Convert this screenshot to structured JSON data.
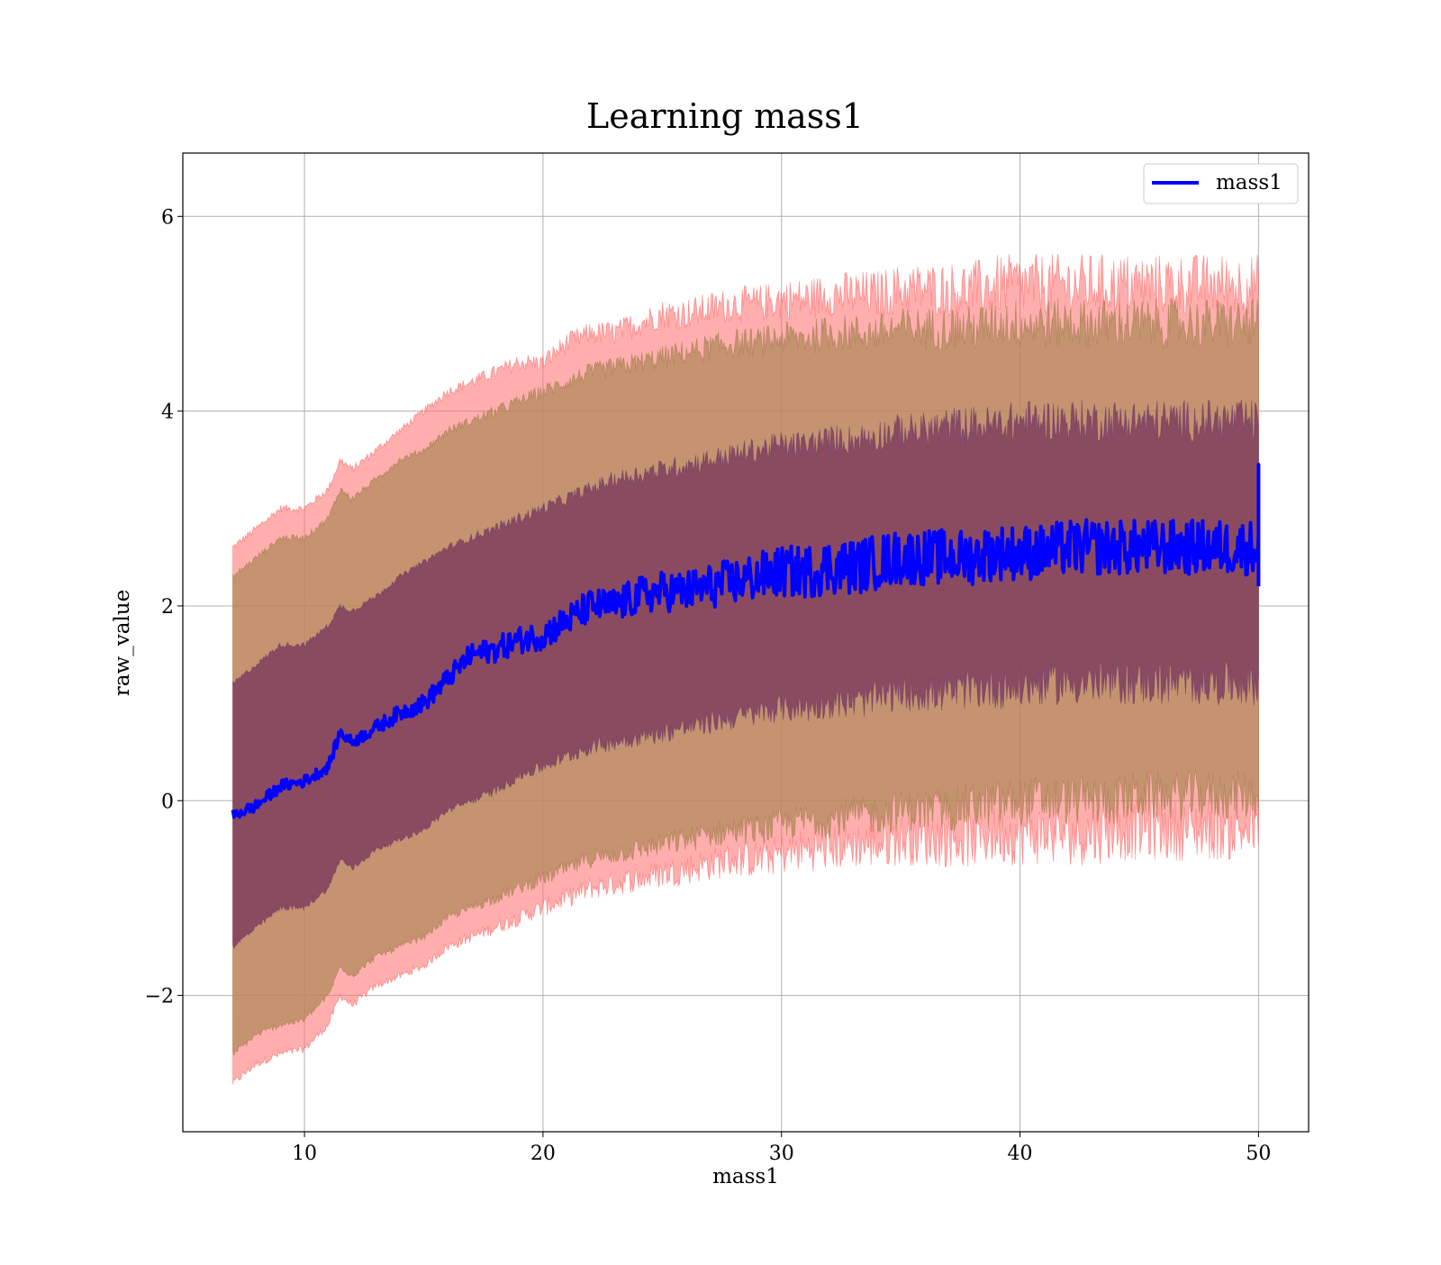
{
  "chart_data": {
    "type": "line",
    "title": "Learning mass1",
    "xlabel": "mass1",
    "ylabel": "raw_value",
    "xlim": [
      4.9,
      52.1
    ],
    "ylim": [
      -3.4,
      6.65
    ],
    "x_ticks": [
      10,
      20,
      30,
      40,
      50
    ],
    "x_tick_labels": [
      "10",
      "20",
      "30",
      "40",
      "50"
    ],
    "y_ticks": [
      -2,
      0,
      2,
      4,
      6
    ],
    "y_tick_labels": [
      "−2",
      "0",
      "2",
      "4",
      "6"
    ],
    "grid": true,
    "legend": {
      "position": "top-right",
      "entries": [
        "mass1"
      ]
    },
    "colors": {
      "line": "#0000ff",
      "outer_band": "#ff6b6b",
      "middle_band": "#b28a5a",
      "inner_band": "#7a3a5e"
    },
    "series": [
      {
        "name": "mass1",
        "x": [
          7,
          8,
          9,
          10,
          11,
          11.5,
          12,
          13,
          14,
          15,
          16,
          17,
          18,
          19,
          20,
          21,
          22,
          23,
          24,
          25,
          26,
          27,
          28,
          29,
          30,
          31,
          32,
          33,
          34,
          35,
          36,
          37,
          38,
          39,
          40,
          41,
          42,
          43,
          44,
          45,
          46,
          47,
          48,
          49,
          50
        ],
        "y": [
          -0.15,
          -0.05,
          0.15,
          0.2,
          0.35,
          0.7,
          0.6,
          0.75,
          0.9,
          1.0,
          1.25,
          1.5,
          1.55,
          1.65,
          1.7,
          1.85,
          2.0,
          2.0,
          2.1,
          2.15,
          2.15,
          2.2,
          2.25,
          2.3,
          2.35,
          2.35,
          2.4,
          2.4,
          2.45,
          2.5,
          2.5,
          2.5,
          2.5,
          2.55,
          2.55,
          2.55,
          2.6,
          2.6,
          2.6,
          2.6,
          2.6,
          2.6,
          2.6,
          2.6,
          2.6
        ],
        "band_outer": {
          "upper": [
            2.6,
            2.8,
            3.0,
            3.0,
            3.2,
            3.5,
            3.4,
            3.6,
            3.8,
            4.0,
            4.2,
            4.3,
            4.4,
            4.5,
            4.5,
            4.7,
            4.8,
            4.8,
            4.9,
            5.0,
            5.0,
            5.05,
            5.1,
            5.1,
            5.15,
            5.15,
            5.2,
            5.2,
            5.2,
            5.25,
            5.25,
            5.25,
            5.25,
            5.3,
            5.3,
            5.3,
            5.3,
            5.3,
            5.3,
            5.3,
            5.3,
            5.3,
            5.3,
            5.3,
            5.3
          ],
          "lower": [
            -2.9,
            -2.7,
            -2.6,
            -2.55,
            -2.3,
            -2.0,
            -2.1,
            -1.9,
            -1.8,
            -1.7,
            -1.5,
            -1.4,
            -1.3,
            -1.2,
            -1.1,
            -1.0,
            -0.9,
            -0.85,
            -0.8,
            -0.75,
            -0.7,
            -0.65,
            -0.6,
            -0.6,
            -0.55,
            -0.5,
            -0.5,
            -0.45,
            -0.45,
            -0.4,
            -0.4,
            -0.4,
            -0.4,
            -0.35,
            -0.35,
            -0.35,
            -0.35,
            -0.35,
            -0.3,
            -0.3,
            -0.3,
            -0.3,
            -0.3,
            -0.3,
            -0.3
          ]
        },
        "band_middle": {
          "upper": [
            2.3,
            2.5,
            2.7,
            2.7,
            2.9,
            3.2,
            3.1,
            3.3,
            3.5,
            3.6,
            3.8,
            3.9,
            4.0,
            4.1,
            4.2,
            4.3,
            4.4,
            4.45,
            4.5,
            4.55,
            4.6,
            4.65,
            4.7,
            4.7,
            4.75,
            4.75,
            4.8,
            4.8,
            4.8,
            4.85,
            4.85,
            4.85,
            4.85,
            4.9,
            4.9,
            4.9,
            4.9,
            4.9,
            4.9,
            4.9,
            4.9,
            4.9,
            4.9,
            4.9,
            4.9
          ],
          "lower": [
            -2.6,
            -2.4,
            -2.3,
            -2.25,
            -2.0,
            -1.7,
            -1.8,
            -1.6,
            -1.5,
            -1.4,
            -1.2,
            -1.1,
            -1.0,
            -0.9,
            -0.8,
            -0.7,
            -0.6,
            -0.55,
            -0.5,
            -0.45,
            -0.4,
            -0.35,
            -0.3,
            -0.3,
            -0.25,
            -0.2,
            -0.2,
            -0.15,
            -0.15,
            -0.1,
            -0.1,
            -0.1,
            -0.05,
            -0.05,
            0.0,
            0.0,
            0.0,
            0.0,
            0.0,
            0.05,
            0.05,
            0.05,
            0.05,
            0.05,
            0.05
          ]
        },
        "band_inner": {
          "upper": [
            1.2,
            1.4,
            1.6,
            1.6,
            1.8,
            2.0,
            1.95,
            2.1,
            2.3,
            2.45,
            2.6,
            2.7,
            2.8,
            2.9,
            3.0,
            3.1,
            3.2,
            3.3,
            3.35,
            3.4,
            3.45,
            3.5,
            3.55,
            3.6,
            3.65,
            3.65,
            3.7,
            3.7,
            3.75,
            3.8,
            3.8,
            3.85,
            3.85,
            3.85,
            3.9,
            3.9,
            3.9,
            3.9,
            3.9,
            3.9,
            3.9,
            3.9,
            3.9,
            3.9,
            3.9
          ],
          "lower": [
            -1.5,
            -1.3,
            -1.1,
            -1.1,
            -0.9,
            -0.6,
            -0.7,
            -0.5,
            -0.4,
            -0.3,
            -0.1,
            0.0,
            0.1,
            0.25,
            0.35,
            0.45,
            0.55,
            0.6,
            0.65,
            0.7,
            0.75,
            0.8,
            0.85,
            0.9,
            0.95,
            0.95,
            1.0,
            1.0,
            1.05,
            1.1,
            1.1,
            1.1,
            1.15,
            1.15,
            1.15,
            1.2,
            1.2,
            1.2,
            1.2,
            1.2,
            1.2,
            1.2,
            1.2,
            1.2,
            1.2
          ]
        }
      }
    ]
  }
}
